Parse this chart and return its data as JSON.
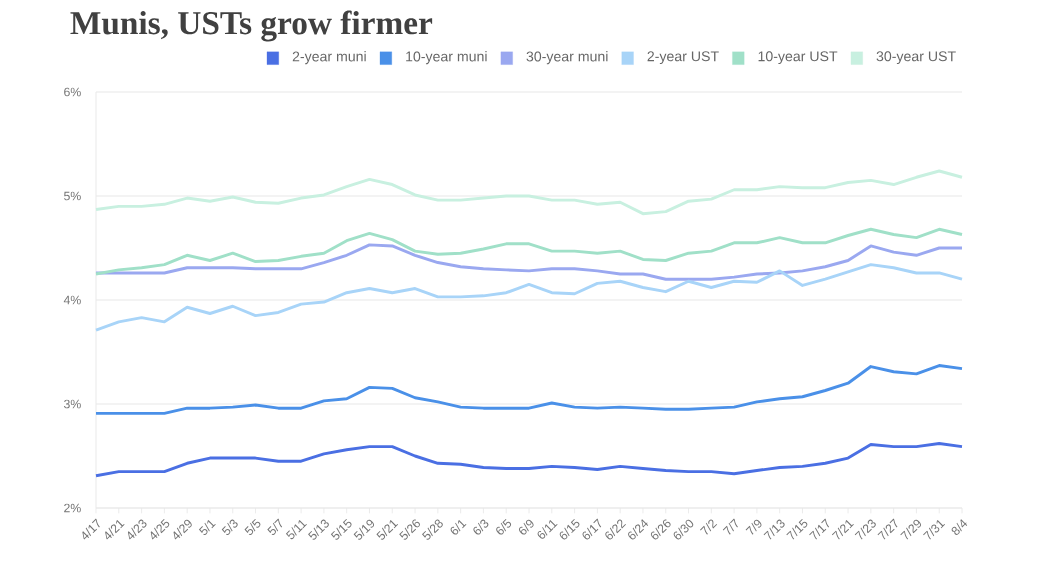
{
  "chart_data": {
    "type": "line",
    "title": "Munis, USTs grow firmer",
    "categories": [
      "4/17",
      "4/21",
      "4/23",
      "4/25",
      "4/29",
      "5/1",
      "5/3",
      "5/5",
      "5/7",
      "5/11",
      "5/13",
      "5/15",
      "5/19",
      "5/21",
      "5/26",
      "5/28",
      "6/1",
      "6/3",
      "6/5",
      "6/9",
      "6/11",
      "6/15",
      "6/17",
      "6/22",
      "6/24",
      "6/26",
      "6/30",
      "7/2",
      "7/7",
      "7/9",
      "7/13",
      "7/15",
      "7/17",
      "7/21",
      "7/23",
      "7/27",
      "7/29",
      "7/31",
      "8/4"
    ],
    "series": [
      {
        "name": "2-year muni",
        "color": "#4a6fe3",
        "values": [
          2.31,
          2.35,
          2.35,
          2.35,
          2.43,
          2.48,
          2.48,
          2.48,
          2.45,
          2.45,
          2.52,
          2.56,
          2.59,
          2.59,
          2.5,
          2.43,
          2.42,
          2.39,
          2.38,
          2.38,
          2.4,
          2.39,
          2.37,
          2.4,
          2.38,
          2.36,
          2.35,
          2.35,
          2.33,
          2.36,
          2.39,
          2.4,
          2.43,
          2.48,
          2.61,
          2.59,
          2.59,
          2.62,
          2.59
        ]
      },
      {
        "name": "10-year muni",
        "color": "#4a90e8",
        "values": [
          2.91,
          2.91,
          2.91,
          2.91,
          2.96,
          2.96,
          2.97,
          2.99,
          2.96,
          2.96,
          3.03,
          3.05,
          3.16,
          3.15,
          3.06,
          3.02,
          2.97,
          2.96,
          2.96,
          2.96,
          3.01,
          2.97,
          2.96,
          2.97,
          2.96,
          2.95,
          2.95,
          2.96,
          2.97,
          3.02,
          3.05,
          3.07,
          3.13,
          3.2,
          3.36,
          3.31,
          3.29,
          3.37,
          3.34
        ]
      },
      {
        "name": "30-year muni",
        "color": "#9aa8f0",
        "values": [
          4.26,
          4.26,
          4.26,
          4.26,
          4.31,
          4.31,
          4.31,
          4.3,
          4.3,
          4.3,
          4.36,
          4.43,
          4.53,
          4.52,
          4.43,
          4.36,
          4.32,
          4.3,
          4.29,
          4.28,
          4.3,
          4.3,
          4.28,
          4.25,
          4.25,
          4.2,
          4.2,
          4.2,
          4.22,
          4.25,
          4.26,
          4.28,
          4.32,
          4.38,
          4.52,
          4.46,
          4.43,
          4.5,
          4.5
        ]
      },
      {
        "name": "2-year UST",
        "color": "#a8d4f8",
        "values": [
          3.71,
          3.79,
          3.83,
          3.79,
          3.93,
          3.87,
          3.94,
          3.85,
          3.88,
          3.96,
          3.98,
          4.07,
          4.11,
          4.07,
          4.11,
          4.03,
          4.03,
          4.04,
          4.07,
          4.15,
          4.07,
          4.06,
          4.16,
          4.18,
          4.12,
          4.08,
          4.18,
          4.12,
          4.18,
          4.17,
          4.28,
          4.14,
          4.2,
          4.27,
          4.34,
          4.31,
          4.26,
          4.26,
          4.2
        ]
      },
      {
        "name": "10-year UST",
        "color": "#a0e0c8",
        "values": [
          4.25,
          4.29,
          4.31,
          4.34,
          4.43,
          4.38,
          4.45,
          4.37,
          4.38,
          4.42,
          4.45,
          4.57,
          4.64,
          4.58,
          4.47,
          4.44,
          4.45,
          4.49,
          4.54,
          4.54,
          4.47,
          4.47,
          4.45,
          4.47,
          4.39,
          4.38,
          4.45,
          4.47,
          4.55,
          4.55,
          4.6,
          4.55,
          4.55,
          4.62,
          4.68,
          4.63,
          4.6,
          4.68,
          4.63
        ]
      },
      {
        "name": "30-year UST",
        "color": "#c8f0e0",
        "values": [
          4.87,
          4.9,
          4.9,
          4.92,
          4.98,
          4.95,
          4.99,
          4.94,
          4.93,
          4.98,
          5.01,
          5.09,
          5.16,
          5.11,
          5.01,
          4.96,
          4.96,
          4.98,
          5.0,
          5.0,
          4.96,
          4.96,
          4.92,
          4.94,
          4.83,
          4.85,
          4.95,
          4.97,
          5.06,
          5.06,
          5.09,
          5.08,
          5.08,
          5.13,
          5.15,
          5.11,
          5.18,
          5.24,
          5.18
        ]
      }
    ],
    "ylim": [
      2,
      6
    ],
    "yticks": [
      {
        "value": 2,
        "label": "2%"
      },
      {
        "value": 3,
        "label": "3%"
      },
      {
        "value": 4,
        "label": "4%"
      },
      {
        "value": 5,
        "label": "5%"
      },
      {
        "value": 6,
        "label": "6%"
      }
    ],
    "grid": "y",
    "legend": "top right",
    "marker": "none",
    "line_style": "solid"
  }
}
